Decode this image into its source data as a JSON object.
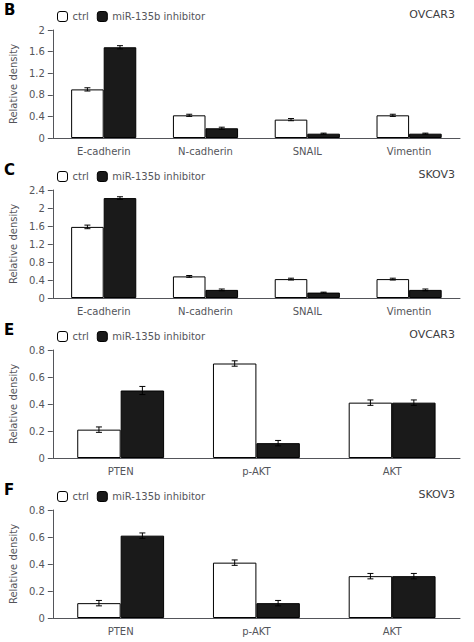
{
  "chart_data": [
    {
      "type": "bar",
      "title": "OVCAR3",
      "annotations": [
        "B"
      ],
      "categories": [
        "E-cadherin",
        "N-cadherin",
        "SNAIL",
        "Vimentin"
      ],
      "series": [
        {
          "name": "ctrl",
          "color": "white",
          "values": [
            0.9,
            0.42,
            0.34,
            0.42
          ],
          "errors": [
            0.03,
            0.02,
            0.02,
            0.02
          ]
        },
        {
          "name": "miR-135b inhibitor",
          "color": "#1a1a1a",
          "values": [
            1.68,
            0.18,
            0.08,
            0.08
          ],
          "errors": [
            0.03,
            0.02,
            0.01,
            0.01
          ]
        }
      ],
      "ylabel": "Relative density",
      "ylim": [
        0,
        2.0
      ],
      "yticks": [
        0,
        0.4,
        0.8,
        1.2,
        1.6,
        2.0
      ],
      "grid": false,
      "legend": "upper left"
    },
    {
      "type": "bar",
      "title": "SKOV3",
      "annotations": [
        "C"
      ],
      "categories": [
        "E-cadherin",
        "N-cadherin",
        "SNAIL",
        "Vimentin"
      ],
      "series": [
        {
          "name": "ctrl",
          "color": "white",
          "values": [
            1.58,
            0.48,
            0.42,
            0.42
          ],
          "errors": [
            0.04,
            0.02,
            0.02,
            0.02
          ]
        },
        {
          "name": "miR-135b inhibitor",
          "color": "#1a1a1a",
          "values": [
            2.22,
            0.18,
            0.12,
            0.18
          ],
          "errors": [
            0.03,
            0.02,
            0.01,
            0.02
          ]
        }
      ],
      "ylabel": "Relative density",
      "ylim": [
        0,
        2.4
      ],
      "yticks": [
        0,
        0.4,
        0.8,
        1.2,
        1.6,
        2.0,
        2.4
      ],
      "grid": false,
      "legend": "upper left"
    },
    {
      "type": "bar",
      "title": "OVCAR3",
      "annotations": [
        "E"
      ],
      "categories": [
        "PTEN",
        "p-AKT",
        "AKT"
      ],
      "series": [
        {
          "name": "ctrl",
          "color": "white",
          "values": [
            0.21,
            0.7,
            0.41
          ],
          "errors": [
            0.02,
            0.02,
            0.02
          ]
        },
        {
          "name": "miR-135b inhibitor",
          "color": "#1a1a1a",
          "values": [
            0.5,
            0.11,
            0.41
          ],
          "errors": [
            0.03,
            0.02,
            0.02
          ]
        }
      ],
      "ylabel": "Relative density",
      "ylim": [
        0,
        0.8
      ],
      "yticks": [
        0,
        0.2,
        0.4,
        0.6,
        0.8
      ],
      "grid": false,
      "legend": "upper left"
    },
    {
      "type": "bar",
      "title": "SKOV3",
      "annotations": [
        "F"
      ],
      "categories": [
        "PTEN",
        "p-AKT",
        "AKT"
      ],
      "series": [
        {
          "name": "ctrl",
          "color": "white",
          "values": [
            0.11,
            0.41,
            0.31
          ],
          "errors": [
            0.02,
            0.02,
            0.02
          ]
        },
        {
          "name": "miR-135b inhibitor",
          "color": "#1a1a1a",
          "values": [
            0.61,
            0.11,
            0.31
          ],
          "errors": [
            0.02,
            0.02,
            0.02
          ]
        }
      ],
      "ylabel": "Relative density",
      "ylim": [
        0,
        0.8
      ],
      "yticks": [
        0,
        0.2,
        0.4,
        0.6,
        0.8
      ],
      "grid": false,
      "legend": "upper left"
    }
  ]
}
